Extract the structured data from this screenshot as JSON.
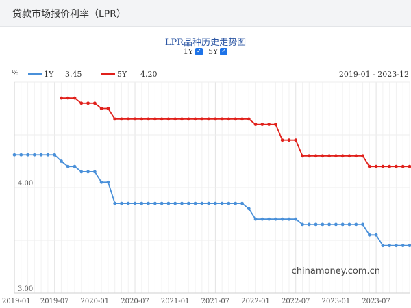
{
  "header": {
    "title": "贷款市场报价利率（LPR）"
  },
  "chart_title": "LPR品种历史走势图",
  "toggles": [
    {
      "label": "1Y",
      "checked": true
    },
    {
      "label": "5Y",
      "checked": true
    }
  ],
  "legend": {
    "unit": "%",
    "items": [
      {
        "name": "1Y",
        "value": "3.45",
        "color": "#4a90d9"
      },
      {
        "name": "5Y",
        "value": "4.20",
        "color": "#e0201b"
      }
    ],
    "range": "2019-01 - 2023-12"
  },
  "watermark": "chinamoney.com.cn",
  "chart_data": {
    "type": "line",
    "x": [
      "2019-01",
      "2019-02",
      "2019-03",
      "2019-04",
      "2019-05",
      "2019-06",
      "2019-07",
      "2019-08",
      "2019-09",
      "2019-10",
      "2019-11",
      "2019-12",
      "2020-01",
      "2020-02",
      "2020-03",
      "2020-04",
      "2020-05",
      "2020-06",
      "2020-07",
      "2020-08",
      "2020-09",
      "2020-10",
      "2020-11",
      "2020-12",
      "2021-01",
      "2021-02",
      "2021-03",
      "2021-04",
      "2021-05",
      "2021-06",
      "2021-07",
      "2021-08",
      "2021-09",
      "2021-10",
      "2021-11",
      "2021-12",
      "2022-01",
      "2022-02",
      "2022-03",
      "2022-04",
      "2022-05",
      "2022-06",
      "2022-07",
      "2022-08",
      "2022-09",
      "2022-10",
      "2022-11",
      "2022-12",
      "2023-01",
      "2023-02",
      "2023-03",
      "2023-04",
      "2023-05",
      "2023-06",
      "2023-07",
      "2023-08",
      "2023-09",
      "2023-10",
      "2023-11",
      "2023-12"
    ],
    "x_ticks": [
      "2019-01",
      "2019-07",
      "2020-01",
      "2020-07",
      "2021-01",
      "2021-07",
      "2022-01",
      "2022-07",
      "2023-01",
      "2023-07"
    ],
    "y_ticks": [
      "4.00",
      "3.00"
    ],
    "ylim": [
      3.0,
      5.0
    ],
    "series": [
      {
        "name": "1Y",
        "color": "#4a90d9",
        "values": [
          4.31,
          4.31,
          4.31,
          4.31,
          4.31,
          4.31,
          4.31,
          4.25,
          4.2,
          4.2,
          4.15,
          4.15,
          4.15,
          4.05,
          4.05,
          3.85,
          3.85,
          3.85,
          3.85,
          3.85,
          3.85,
          3.85,
          3.85,
          3.85,
          3.85,
          3.85,
          3.85,
          3.85,
          3.85,
          3.85,
          3.85,
          3.85,
          3.85,
          3.85,
          3.85,
          3.8,
          3.7,
          3.7,
          3.7,
          3.7,
          3.7,
          3.7,
          3.7,
          3.65,
          3.65,
          3.65,
          3.65,
          3.65,
          3.65,
          3.65,
          3.65,
          3.65,
          3.65,
          3.55,
          3.55,
          3.45,
          3.45,
          3.45,
          3.45,
          3.45
        ]
      },
      {
        "name": "5Y",
        "color": "#e0201b",
        "values": [
          null,
          null,
          null,
          null,
          null,
          null,
          null,
          4.85,
          4.85,
          4.85,
          4.8,
          4.8,
          4.8,
          4.75,
          4.75,
          4.65,
          4.65,
          4.65,
          4.65,
          4.65,
          4.65,
          4.65,
          4.65,
          4.65,
          4.65,
          4.65,
          4.65,
          4.65,
          4.65,
          4.65,
          4.65,
          4.65,
          4.65,
          4.65,
          4.65,
          4.65,
          4.6,
          4.6,
          4.6,
          4.6,
          4.45,
          4.45,
          4.45,
          4.3,
          4.3,
          4.3,
          4.3,
          4.3,
          4.3,
          4.3,
          4.3,
          4.3,
          4.3,
          4.2,
          4.2,
          4.2,
          4.2,
          4.2,
          4.2,
          4.2
        ]
      }
    ],
    "grid": true,
    "legend_position": "top-left"
  }
}
